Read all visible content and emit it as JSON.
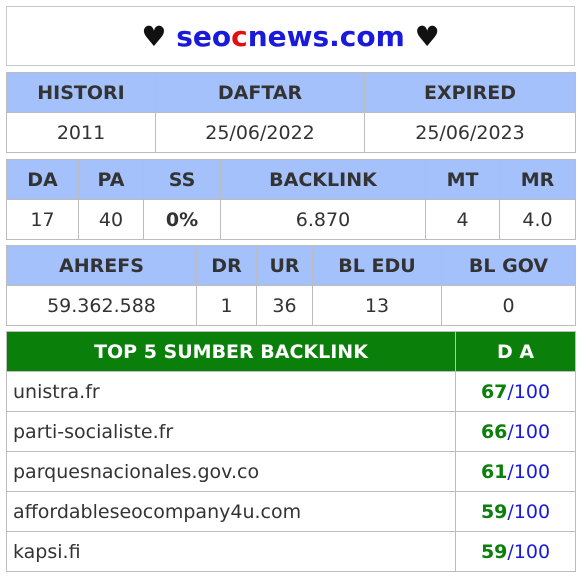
{
  "site": {
    "heart": "♥",
    "name_part1": "seo",
    "name_part2": "c",
    "name_part3": "news.com"
  },
  "domain_info": {
    "headers": [
      "HISTORI",
      "DAFTAR",
      "EXPIRED"
    ],
    "values": [
      "2011",
      "25/06/2022",
      "25/06/2023"
    ]
  },
  "metrics": {
    "headers": [
      "DA",
      "PA",
      "SS",
      "BACKLINK",
      "MT",
      "MR"
    ],
    "values": [
      "17",
      "40",
      "0%",
      "6.870",
      "4",
      "4.0"
    ]
  },
  "ahrefs": {
    "headers": [
      "AHREFS",
      "DR",
      "UR",
      "BL EDU",
      "BL GOV"
    ],
    "values": [
      "59.362.588",
      "1",
      "36",
      "13",
      "0"
    ]
  },
  "top_backlinks": {
    "header_source": "TOP 5 SUMBER BACKLINK",
    "header_da": "D A",
    "max": "/100",
    "rows": [
      {
        "site": "unistra.fr",
        "da": "67"
      },
      {
        "site": "parti-socialiste.fr",
        "da": "66"
      },
      {
        "site": "parquesnacionales.gov.co",
        "da": "61"
      },
      {
        "site": "affordableseocompany4u.com",
        "da": "59"
      },
      {
        "site": "kapsi.fi",
        "da": "59"
      }
    ]
  },
  "colors": {
    "header_blue": "#a4c1fb",
    "header_green": "#0a7f0a",
    "link_blue": "#1a1adb",
    "accent_red": "#e01010",
    "ss_green": "#7ed321"
  }
}
